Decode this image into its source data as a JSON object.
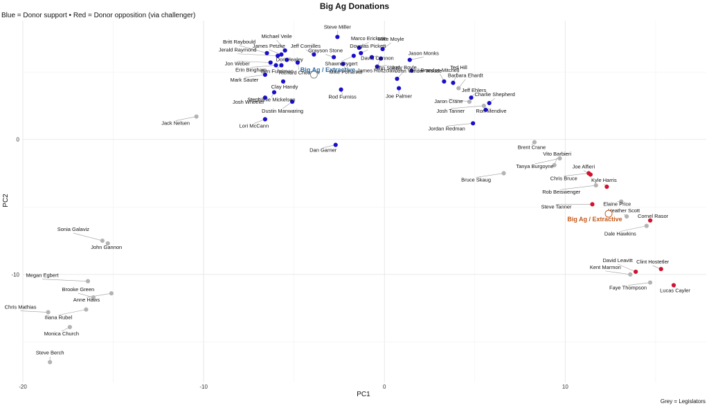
{
  "chart_data": {
    "type": "scatter",
    "title": "Big Ag Donations",
    "subtitle": "Blue = Donor support • Red = Donor opposition (via challenger)",
    "caption": "Grey = Legislators",
    "xlabel": "PC1",
    "ylabel": "PC2",
    "xlim": [
      -20,
      17.8
    ],
    "ylim": [
      -18,
      8.8
    ],
    "xticks": [
      -20,
      -10,
      0,
      10
    ],
    "yticks": [
      0,
      -10
    ],
    "grid": true,
    "colors": {
      "support": "#1a0fc9",
      "oppose": "#d0122f",
      "legislator": "#b3b3b3",
      "centroid_support": "#2d6a9f",
      "centroid_oppose": "#c4591a"
    },
    "centroids": [
      {
        "label": "Big Ag / Extractive",
        "x": -3.9,
        "y": 4.8,
        "group": "support"
      },
      {
        "label": "Big Ag / Extractive",
        "x": 12.4,
        "y": -5.5,
        "group": "oppose"
      }
    ],
    "points": [
      {
        "name": "Steve Miller",
        "x": -2.6,
        "y": 7.6,
        "group": "support"
      },
      {
        "name": "Marco Erickson",
        "x": -1.4,
        "y": 6.8,
        "group": "support"
      },
      {
        "name": "Mike Moyle",
        "x": -0.1,
        "y": 6.7,
        "group": "support"
      },
      {
        "name": "Douglas Pickett",
        "x": -1.3,
        "y": 6.4,
        "group": "support"
      },
      {
        "name": "Jeff Cornilles",
        "x": -3.9,
        "y": 6.3,
        "group": "support"
      },
      {
        "name": "Grayson Stone",
        "x": -2.8,
        "y": 6.1,
        "group": "support"
      },
      {
        "name": "Michael Veile",
        "x": -5.5,
        "y": 6.6,
        "group": "support"
      },
      {
        "name": "James Petzke",
        "x": -5.7,
        "y": 6.3,
        "group": "support"
      },
      {
        "name": "Britt Raybould",
        "x": -6.5,
        "y": 6.4,
        "group": "support"
      },
      {
        "name": "Jerald Raymond",
        "x": -5.9,
        "y": 6.2,
        "group": "support"
      },
      {
        "name": "Dori Healey",
        "x": -5.4,
        "y": 5.9,
        "group": "support"
      },
      {
        "name": "Shawn Dygert",
        "x": -1.7,
        "y": 6.2,
        "group": "support"
      },
      {
        "name": "David Cannon",
        "x": -0.7,
        "y": 6.1,
        "group": "support"
      },
      {
        "name": "Jason Monks",
        "x": 1.4,
        "y": 5.9,
        "group": "support"
      },
      {
        "name": "John Shirts",
        "x": -0.4,
        "y": 5.4,
        "group": "support"
      },
      {
        "name": "John Vander Woude",
        "x": 1.5,
        "y": 5.1,
        "group": "support"
      },
      {
        "name": "Jon Weber",
        "x": -6.3,
        "y": 5.7,
        "group": "support"
      },
      {
        "name": "Erin Bingham",
        "x": -6.0,
        "y": 5.5,
        "group": "support"
      },
      {
        "name": "Ben Fuhriman",
        "x": -5.7,
        "y": 5.5,
        "group": "support"
      },
      {
        "name": "Mike Pohanka",
        "x": -2.3,
        "y": 5.6,
        "group": "support"
      },
      {
        "name": "Judy Boyle",
        "x": 0.7,
        "y": 4.5,
        "group": "support"
      },
      {
        "name": "Mark Sauter",
        "x": -6.6,
        "y": 4.8,
        "group": "support"
      },
      {
        "name": "Clay Handy",
        "x": -5.6,
        "y": 4.3,
        "group": "support"
      },
      {
        "name": "Richard Cheatum",
        "x": -4.8,
        "y": 5.7,
        "group": "support"
      },
      {
        "name": "James Holtzclaw",
        "x": -0.2,
        "y": 6.0,
        "group": "support"
      },
      {
        "name": "Joe Palmer",
        "x": 0.8,
        "y": 3.8,
        "group": "support"
      },
      {
        "name": "Rod Furniss",
        "x": -2.4,
        "y": 3.7,
        "group": "support"
      },
      {
        "name": "Josh Wheeler",
        "x": -6.6,
        "y": 3.1,
        "group": "support"
      },
      {
        "name": "Stephanie Mickelsen",
        "x": -6.1,
        "y": 3.5,
        "group": "support"
      },
      {
        "name": "Dustin Manwaring",
        "x": -5.1,
        "y": 2.8,
        "group": "support"
      },
      {
        "name": "Lori McCann",
        "x": -6.6,
        "y": 1.5,
        "group": "support"
      },
      {
        "name": "Dan Garner",
        "x": -2.7,
        "y": -0.4,
        "group": "support"
      },
      {
        "name": "Ted Hill",
        "x": 3.8,
        "y": 4.2,
        "group": "support"
      },
      {
        "name": "Brandon Mitchell",
        "x": 3.3,
        "y": 4.3,
        "group": "support"
      },
      {
        "name": "Barbara Ehardt",
        "x": 4.1,
        "y": 3.8,
        "group": "legislator"
      },
      {
        "name": "Jeff Ehlers",
        "x": 4.8,
        "y": 3.1,
        "group": "support"
      },
      {
        "name": "Jaron Crane",
        "x": 4.7,
        "y": 2.8,
        "group": "legislator"
      },
      {
        "name": "Charlie Shepherd",
        "x": 5.8,
        "y": 2.7,
        "group": "support"
      },
      {
        "name": "Josh Tanner",
        "x": 5.5,
        "y": 2.5,
        "group": "legislator"
      },
      {
        "name": "Ron Mendive",
        "x": 5.6,
        "y": 2.2,
        "group": "support"
      },
      {
        "name": "Jordan Redman",
        "x": 4.9,
        "y": 1.2,
        "group": "support"
      },
      {
        "name": "Brent Crane",
        "x": 8.3,
        "y": -0.2,
        "group": "legislator"
      },
      {
        "name": "Jack Nelsen",
        "x": -10.4,
        "y": 1.7,
        "group": "legislator"
      },
      {
        "name": "Tanya Burgoyne",
        "x": 9.7,
        "y": -1.4,
        "group": "legislator"
      },
      {
        "name": "Vito Barbieri",
        "x": 9.4,
        "y": -1.9,
        "group": "legislator"
      },
      {
        "name": "Chris Bruce",
        "x": 11.3,
        "y": -2.5,
        "group": "oppose"
      },
      {
        "name": "Joe Alfieri",
        "x": 11.4,
        "y": -2.6,
        "group": "oppose"
      },
      {
        "name": "Bruce Skaug",
        "x": 6.6,
        "y": -2.5,
        "group": "legislator"
      },
      {
        "name": "Kyle Harris",
        "x": 12.3,
        "y": -3.5,
        "group": "oppose"
      },
      {
        "name": "Rob Beiswenger",
        "x": 11.7,
        "y": -3.4,
        "group": "legislator"
      },
      {
        "name": "Elaine Price",
        "x": 13.1,
        "y": -4.6,
        "group": "legislator"
      },
      {
        "name": "Steve Tanner",
        "x": 11.5,
        "y": -4.8,
        "group": "oppose"
      },
      {
        "name": "Heather Scott",
        "x": 13.4,
        "y": -5.7,
        "group": "legislator"
      },
      {
        "name": "Cornel Rasor",
        "x": 14.7,
        "y": -6.0,
        "group": "oppose"
      },
      {
        "name": "Dale Hawkins",
        "x": 14.5,
        "y": -6.4,
        "group": "legislator"
      },
      {
        "name": "Sonia Galaviz",
        "x": -15.6,
        "y": -7.5,
        "group": "legislator"
      },
      {
        "name": "John Gannon",
        "x": -15.3,
        "y": -7.7,
        "group": "legislator"
      },
      {
        "name": "David Leavitt",
        "x": 13.9,
        "y": -9.8,
        "group": "oppose"
      },
      {
        "name": "Kent Marmon",
        "x": 13.6,
        "y": -10.0,
        "group": "legislator"
      },
      {
        "name": "Clint Hostetler",
        "x": 15.3,
        "y": -9.6,
        "group": "oppose"
      },
      {
        "name": "Faye Thompson",
        "x": 14.7,
        "y": -10.6,
        "group": "legislator"
      },
      {
        "name": "Lucas Cayler",
        "x": 16.0,
        "y": -10.8,
        "group": "oppose"
      },
      {
        "name": "Megan Egbert",
        "x": -16.4,
        "y": -10.5,
        "group": "legislator"
      },
      {
        "name": "Brooke Green",
        "x": -16.1,
        "y": -11.7,
        "group": "legislator"
      },
      {
        "name": "Anne Haws",
        "x": -15.1,
        "y": -11.4,
        "group": "legislator"
      },
      {
        "name": "Iliana Rubel",
        "x": -16.5,
        "y": -12.6,
        "group": "legislator"
      },
      {
        "name": "Chris Mathias",
        "x": -18.6,
        "y": -12.8,
        "group": "legislator"
      },
      {
        "name": "Monica Church",
        "x": -17.4,
        "y": -13.9,
        "group": "legislator"
      },
      {
        "name": "Steve Berch",
        "x": -18.5,
        "y": -16.5,
        "group": "legislator"
      }
    ]
  }
}
